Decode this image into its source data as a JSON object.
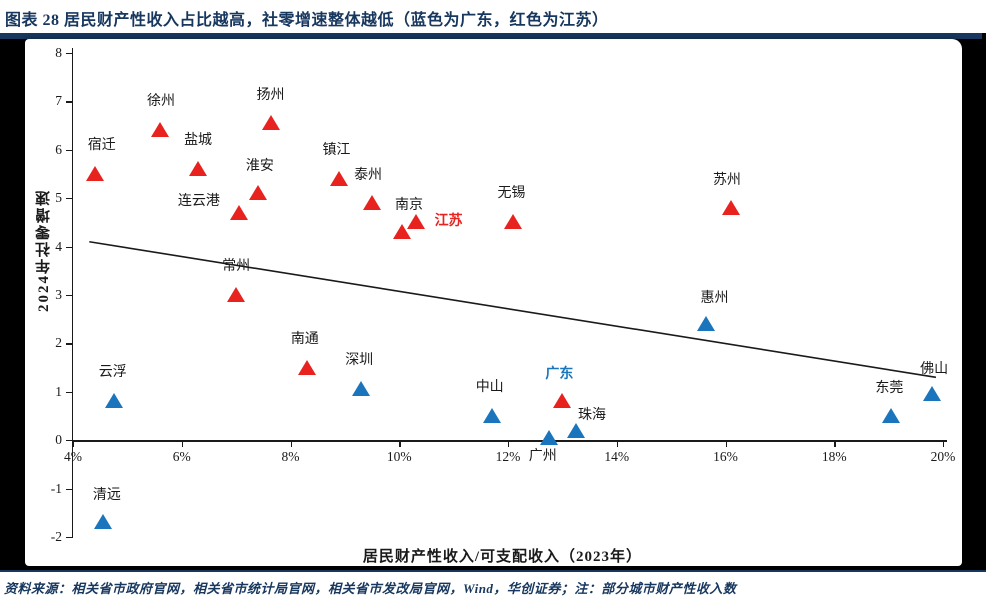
{
  "header": {
    "title": "图表 28  居民财产性收入占比越高，社零增速整体越低（蓝色为广东，红色为江苏）"
  },
  "footer": {
    "text": "资料来源：相关省市政府官网，相关省市统计局官网，相关省市发改局官网，Wind，华创证券；注：部分城市财产性收入数"
  },
  "colors": {
    "red": "#e8231f",
    "blue": "#1b75bc",
    "navy": "#17375e",
    "axis": "#1a1a1a"
  },
  "chart_data": {
    "type": "scatter",
    "title": "居民财产性收入占比越高，社零增速整体越低",
    "legend_note": "蓝色为广东，红色为江苏",
    "xlabel": "居民财产性收入/可支配收入（2023年）",
    "ylabel": "2024年社零增速",
    "xlim": [
      4,
      20
    ],
    "ylim": [
      -2,
      8
    ],
    "x_ticks": [
      {
        "v": 4,
        "label": "4%"
      },
      {
        "v": 6,
        "label": "6%"
      },
      {
        "v": 8,
        "label": "8%"
      },
      {
        "v": 10,
        "label": "10%"
      },
      {
        "v": 12,
        "label": "12%"
      },
      {
        "v": 14,
        "label": "14%"
      },
      {
        "v": 16,
        "label": "16%"
      },
      {
        "v": 18,
        "label": "18%"
      },
      {
        "v": 20,
        "label": "20%"
      }
    ],
    "y_ticks": [
      8,
      7,
      6,
      5,
      4,
      3,
      2,
      1,
      0,
      -1,
      -2
    ],
    "series": [
      {
        "name": "江苏",
        "marker": "red",
        "points": [
          {
            "label": "宿迁",
            "x": 4.4,
            "y": 5.5,
            "dx": 7,
            "dy": -28
          },
          {
            "label": "徐州",
            "x": 5.6,
            "y": 6.4,
            "dx": 1,
            "dy": -28
          },
          {
            "label": "盐城",
            "x": 6.3,
            "y": 5.6,
            "dx": 0,
            "dy": -28
          },
          {
            "label": "连云港",
            "x": 7.05,
            "y": 4.7,
            "dx": -40,
            "dy": -11
          },
          {
            "label": "淮安",
            "x": 7.4,
            "y": 5.1,
            "dx": 2,
            "dy": -26
          },
          {
            "label": "常州",
            "x": 7.0,
            "y": 3.0,
            "dx": 0,
            "dy": -28
          },
          {
            "label": "扬州",
            "x": 7.65,
            "y": 6.55,
            "dx": -1,
            "dy": -27
          },
          {
            "label": "南通",
            "x": 8.3,
            "y": 1.5,
            "dx": -2,
            "dy": -28
          },
          {
            "label": "镇江",
            "x": 8.9,
            "y": 5.4,
            "dx": -3,
            "dy": -28
          },
          {
            "label": "泰州",
            "x": 9.5,
            "y": 4.9,
            "dx": -4,
            "dy": -27
          },
          {
            "label": "南京",
            "x": 10.05,
            "y": 4.3,
            "dx": 7,
            "dy": -26
          },
          {
            "label": "江苏",
            "x": 10.3,
            "y": 4.5,
            "dx": 33,
            "dy": 0,
            "bold": true,
            "label_color": "red"
          },
          {
            "label": "无锡",
            "x": 12.1,
            "y": 4.5,
            "dx": -2,
            "dy": -28
          },
          {
            "label": "苏州",
            "x": 16.1,
            "y": 4.8,
            "dx": -4,
            "dy": -27
          }
        ]
      },
      {
        "name": "广东",
        "marker": "blue",
        "points": [
          {
            "label": "云浮",
            "x": 4.75,
            "y": 0.8,
            "dx": -1,
            "dy": -28
          },
          {
            "label": "清远",
            "x": 4.55,
            "y": -1.7,
            "dx": 4,
            "dy": -26
          },
          {
            "label": "深圳",
            "x": 9.3,
            "y": 1.05,
            "dx": -2,
            "dy": -28
          },
          {
            "label": "中山",
            "x": 11.7,
            "y": 0.5,
            "dx": -2,
            "dy": -28
          },
          {
            "label": "广州",
            "x": 12.75,
            "y": 0.05,
            "dx": -6,
            "dy": 19
          },
          {
            "label": "珠海",
            "x": 13.25,
            "y": 0.2,
            "dx": 16,
            "dy": -15
          },
          {
            "label": "广东",
            "x": 13.0,
            "y": 0.8,
            "dx": -3,
            "dy": -26,
            "bold": true,
            "label_color": "blue",
            "marker": "red"
          },
          {
            "label": "惠州",
            "x": 15.65,
            "y": 2.4,
            "dx": 8,
            "dy": -25
          },
          {
            "label": "东莞",
            "x": 19.05,
            "y": 0.5,
            "dx": -2,
            "dy": -27
          },
          {
            "label": "佛山",
            "x": 19.8,
            "y": 0.95,
            "dx": 2,
            "dy": -24
          }
        ]
      }
    ],
    "trendline": {
      "x1": 4.3,
      "y1": 4.1,
      "x2": 19.87,
      "y2": 1.3
    }
  }
}
